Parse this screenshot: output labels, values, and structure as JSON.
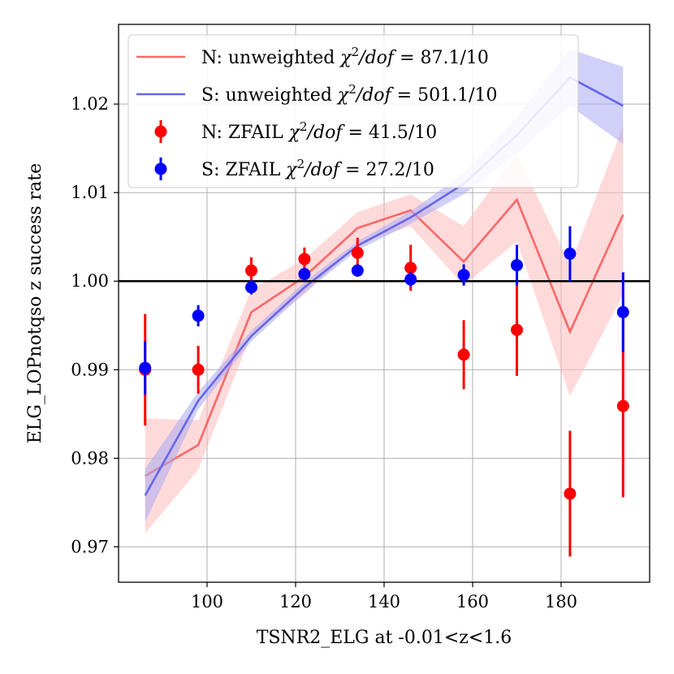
{
  "chart_data": {
    "type": "line",
    "xlabel": "TSNR2_ELG at -0.01<z<1.6",
    "ylabel": "ELG_LOPnotqso z success rate",
    "xlim": [
      80,
      200
    ],
    "ylim": [
      0.966,
      1.029
    ],
    "xticks": [
      100,
      120,
      140,
      160,
      180
    ],
    "yticks": [
      0.97,
      0.98,
      0.99,
      1.0,
      1.01,
      1.02
    ],
    "ytick_labels": [
      "0.97",
      "0.98",
      "0.99",
      "1.00",
      "1.01",
      "1.02"
    ],
    "grid": true,
    "reference_line": 1.0,
    "legend_position": "top-left",
    "series": [
      {
        "name": "N: unweighted",
        "chi2": "87.1/10",
        "kind": "band",
        "color": "#ff6666",
        "fill": "#ffbbbb",
        "x": [
          86,
          98,
          110,
          122,
          134,
          146,
          158,
          170,
          182,
          194
        ],
        "y": [
          0.978,
          0.9815,
          0.9965,
          1.0005,
          1.006,
          1.008,
          1.0022,
          1.0092,
          0.9943,
          1.0075
        ],
        "lo": [
          0.9715,
          0.9787,
          0.994,
          0.9985,
          1.0042,
          1.0062,
          0.9995,
          1.0045,
          0.987,
          0.9985
        ],
        "hi": [
          0.9845,
          0.9843,
          0.999,
          1.0025,
          1.0078,
          1.0098,
          1.0062,
          1.0144,
          1.0018,
          1.0175
        ]
      },
      {
        "name": "S: unweighted",
        "chi2": "501.1/10",
        "kind": "band",
        "color": "#6666ee",
        "fill": "#aaaaf2",
        "x": [
          86,
          98,
          110,
          122,
          134,
          146,
          158,
          170,
          182,
          194
        ],
        "y": [
          0.9758,
          0.9865,
          0.9938,
          0.9993,
          1.004,
          1.0072,
          1.011,
          1.0165,
          1.023,
          1.0198
        ],
        "lo": [
          0.9728,
          0.9855,
          0.9932,
          0.9987,
          1.0035,
          1.0065,
          1.0098,
          1.0145,
          1.0198,
          1.0155
        ],
        "hi": [
          0.9788,
          0.9875,
          0.9944,
          0.9999,
          1.0045,
          1.0079,
          1.0122,
          1.0185,
          1.0262,
          1.0242
        ]
      },
      {
        "name": "N: ZFAIL",
        "chi2": "41.5/10",
        "kind": "errorbar",
        "color": "#ff0000",
        "x": [
          86,
          98,
          110,
          122,
          134,
          146,
          158,
          170,
          182,
          194
        ],
        "y": [
          0.99,
          0.99,
          1.0012,
          1.0025,
          1.0032,
          1.0015,
          0.9917,
          0.9945,
          0.976,
          0.9859
        ],
        "err": [
          0.0063,
          0.0027,
          0.0015,
          0.0013,
          0.0017,
          0.0026,
          0.0039,
          0.0052,
          0.0071,
          0.0103
        ]
      },
      {
        "name": "S: ZFAIL",
        "chi2": "27.2/10",
        "kind": "errorbar",
        "color": "#0000ff",
        "x": [
          86,
          98,
          110,
          122,
          134,
          146,
          158,
          170,
          182,
          194
        ],
        "y": [
          0.9902,
          0.9961,
          0.9993,
          1.0008,
          1.0012,
          1.0002,
          1.0007,
          1.0018,
          1.0031,
          0.9965
        ],
        "err": [
          0.003,
          0.0012,
          0.0008,
          0.0007,
          0.0007,
          0.0008,
          0.0012,
          0.0023,
          0.0031,
          0.0045
        ]
      }
    ]
  }
}
